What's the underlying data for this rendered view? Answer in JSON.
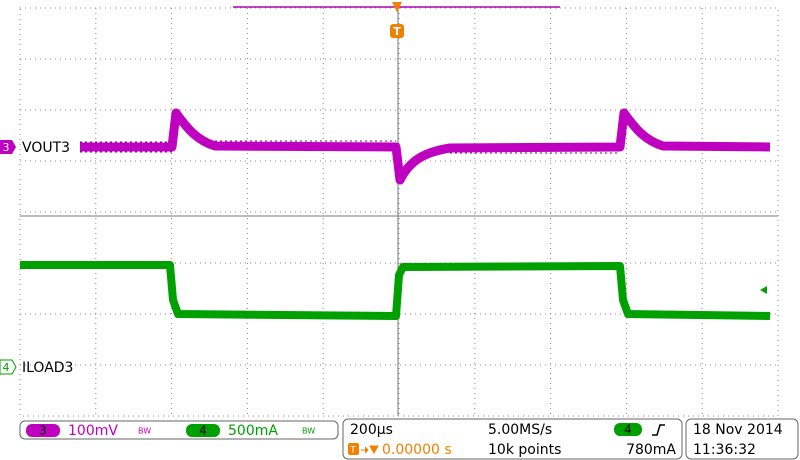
{
  "channels": [
    {
      "number": "3",
      "label": "VOUT3",
      "scale": "100mV",
      "bw": "BW"
    },
    {
      "number": "4",
      "label": "ILOAD3",
      "scale": "500mA",
      "bw": "BW"
    }
  ],
  "timebase": {
    "scale": "200µs",
    "sample_rate": "5.00MS/s",
    "trigger_position": "0.00000 s",
    "record_length": "10k points"
  },
  "trigger": {
    "marker": "T",
    "channel": "4",
    "level": "780mA"
  },
  "date": "18 Nov 2014",
  "time": "11:36:32"
}
